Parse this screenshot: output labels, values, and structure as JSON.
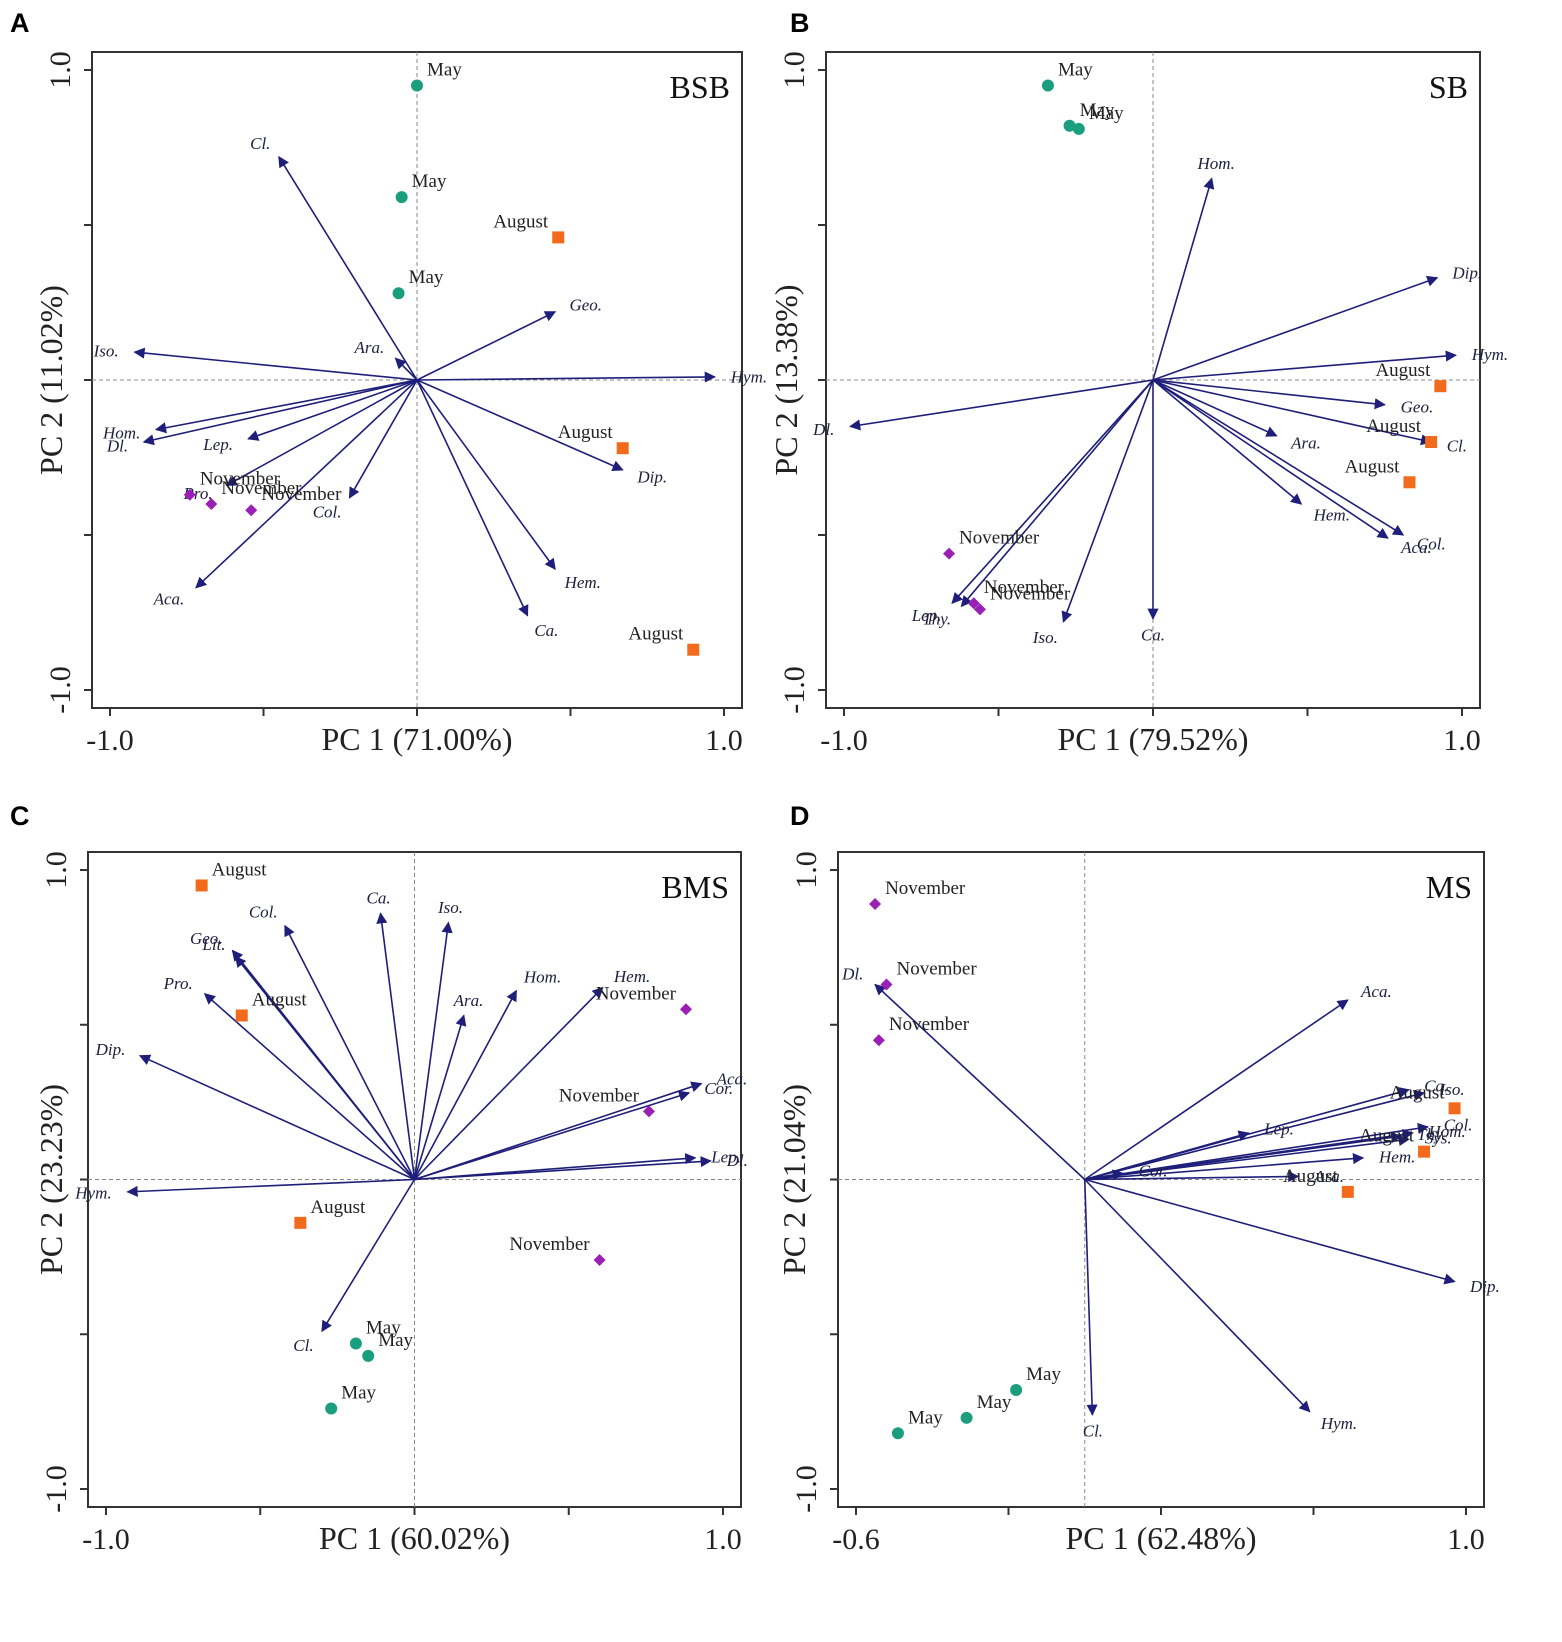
{
  "colors": {
    "arrow": "#1f1f7a",
    "may": "#1a9e7e",
    "august": "#f26a1b",
    "november": "#9a1fb5",
    "frame": "#333333",
    "zero_line": "#888888"
  },
  "chart_data": [
    {
      "type": "scatter",
      "panel": "A",
      "site": "BSB",
      "xlabel": "PC 1 (71.00%)",
      "ylabel": "PC 2 (11.02%)",
      "xlim": [
        -1.0,
        1.0
      ],
      "ylim": [
        -1.0,
        1.0
      ],
      "x_tick_labels": [
        "-1.0",
        "1.0"
      ],
      "y_tick_labels": [
        "1.0",
        "-1.0"
      ],
      "loadings": [
        {
          "name": "Cl.",
          "x": -0.45,
          "y": 0.72
        },
        {
          "name": "Geo.",
          "x": 0.45,
          "y": 0.22
        },
        {
          "name": "Hym.",
          "x": 0.97,
          "y": 0.01
        },
        {
          "name": "Ara.",
          "x": -0.07,
          "y": 0.07
        },
        {
          "name": "Iso.",
          "x": -0.92,
          "y": 0.09
        },
        {
          "name": "Hom.",
          "x": -0.85,
          "y": -0.16
        },
        {
          "name": "Dl.",
          "x": -0.89,
          "y": -0.2
        },
        {
          "name": "Lep.",
          "x": -0.55,
          "y": -0.19
        },
        {
          "name": "Pro.",
          "x": -0.62,
          "y": -0.34
        },
        {
          "name": "Col.",
          "x": -0.22,
          "y": -0.38
        },
        {
          "name": "Aca.",
          "x": -0.72,
          "y": -0.67
        },
        {
          "name": "Dip.",
          "x": 0.67,
          "y": -0.29
        },
        {
          "name": "Hem.",
          "x": 0.45,
          "y": -0.61
        },
        {
          "name": "Ca.",
          "x": 0.36,
          "y": -0.76
        }
      ],
      "scores": [
        {
          "label": "May",
          "group": "May",
          "x": 0.0,
          "y": 0.95
        },
        {
          "label": "May",
          "group": "May",
          "x": -0.05,
          "y": 0.59
        },
        {
          "label": "May",
          "group": "May",
          "x": -0.06,
          "y": 0.28
        },
        {
          "label": "August",
          "group": "August",
          "x": 0.46,
          "y": 0.46
        },
        {
          "label": "August",
          "group": "August",
          "x": 0.67,
          "y": -0.22
        },
        {
          "label": "August",
          "group": "August",
          "x": 0.9,
          "y": -0.87
        },
        {
          "label": "November",
          "group": "November",
          "x": -0.74,
          "y": -0.37
        },
        {
          "label": "November",
          "group": "November",
          "x": -0.67,
          "y": -0.4
        },
        {
          "label": "November",
          "group": "November",
          "x": -0.54,
          "y": -0.42
        }
      ]
    },
    {
      "type": "scatter",
      "panel": "B",
      "site": "SB",
      "xlabel": "PC 1 (79.52%)",
      "ylabel": "PC 2 (13.38%)",
      "xlim": [
        -1.0,
        1.0
      ],
      "ylim": [
        -1.0,
        1.0
      ],
      "x_tick_labels": [
        "-1.0",
        "1.0"
      ],
      "y_tick_labels": [
        "1.0",
        "-1.0"
      ],
      "loadings": [
        {
          "name": "Hom.",
          "x": 0.19,
          "y": 0.65
        },
        {
          "name": "Dip.",
          "x": 0.92,
          "y": 0.33
        },
        {
          "name": "Hym.",
          "x": 0.98,
          "y": 0.08
        },
        {
          "name": "Geo.",
          "x": 0.75,
          "y": -0.08
        },
        {
          "name": "Cl.",
          "x": 0.9,
          "y": -0.2
        },
        {
          "name": "Ara.",
          "x": 0.4,
          "y": -0.18
        },
        {
          "name": "Hem.",
          "x": 0.48,
          "y": -0.4
        },
        {
          "name": "Col.",
          "x": 0.81,
          "y": -0.5
        },
        {
          "name": "Aca.",
          "x": 0.76,
          "y": -0.51
        },
        {
          "name": "Dl.",
          "x": -0.98,
          "y": -0.15
        },
        {
          "name": "Lep.",
          "x": -0.65,
          "y": -0.72
        },
        {
          "name": "Thy.",
          "x": -0.62,
          "y": -0.73
        },
        {
          "name": "Iso.",
          "x": -0.29,
          "y": -0.78
        },
        {
          "name": "Ca.",
          "x": 0.0,
          "y": -0.77
        }
      ],
      "scores": [
        {
          "label": "May",
          "group": "May",
          "x": -0.34,
          "y": 0.95
        },
        {
          "label": "May",
          "group": "May",
          "x": -0.27,
          "y": 0.82
        },
        {
          "label": "May",
          "group": "May",
          "x": -0.24,
          "y": 0.81
        },
        {
          "label": "August",
          "group": "August",
          "x": 0.93,
          "y": -0.02
        },
        {
          "label": "August",
          "group": "August",
          "x": 0.9,
          "y": -0.2
        },
        {
          "label": "August",
          "group": "August",
          "x": 0.83,
          "y": -0.33
        },
        {
          "label": "November",
          "group": "November",
          "x": -0.66,
          "y": -0.56
        },
        {
          "label": "November",
          "group": "November",
          "x": -0.58,
          "y": -0.72
        },
        {
          "label": "November",
          "group": "November",
          "x": -0.56,
          "y": -0.74
        }
      ]
    },
    {
      "type": "scatter",
      "panel": "C",
      "site": "BMS",
      "xlabel": "PC 1 (60.02%)",
      "ylabel": "PC 2 (23.23%)",
      "xlim": [
        -1.0,
        1.0
      ],
      "ylim": [
        -1.0,
        1.0
      ],
      "x_tick_labels": [
        "-1.0",
        "1.0"
      ],
      "y_tick_labels": [
        "1.0",
        "-1.0"
      ],
      "loadings": [
        {
          "name": "Col.",
          "x": -0.42,
          "y": 0.82
        },
        {
          "name": "Ca.",
          "x": -0.11,
          "y": 0.86
        },
        {
          "name": "Iso.",
          "x": 0.11,
          "y": 0.83
        },
        {
          "name": "Geo.",
          "x": -0.59,
          "y": 0.74
        },
        {
          "name": "Lit.",
          "x": -0.58,
          "y": 0.72
        },
        {
          "name": "Pro.",
          "x": -0.68,
          "y": 0.6
        },
        {
          "name": "Dip.",
          "x": -0.89,
          "y": 0.4
        },
        {
          "name": "Ara.",
          "x": 0.16,
          "y": 0.53
        },
        {
          "name": "Hom.",
          "x": 0.33,
          "y": 0.61
        },
        {
          "name": "Hem.",
          "x": 0.61,
          "y": 0.62
        },
        {
          "name": "Aca.",
          "x": 0.93,
          "y": 0.31
        },
        {
          "name": "Cor.",
          "x": 0.89,
          "y": 0.28
        },
        {
          "name": "Lep.",
          "x": 0.91,
          "y": 0.07
        },
        {
          "name": "Dl.",
          "x": 0.96,
          "y": 0.06
        },
        {
          "name": "Hym.",
          "x": -0.93,
          "y": -0.04
        },
        {
          "name": "Cl.",
          "x": -0.3,
          "y": -0.49
        }
      ],
      "scores": [
        {
          "label": "August",
          "group": "August",
          "x": -0.69,
          "y": 0.95
        },
        {
          "label": "August",
          "group": "August",
          "x": -0.56,
          "y": 0.53
        },
        {
          "label": "August",
          "group": "August",
          "x": -0.37,
          "y": -0.14
        },
        {
          "label": "November",
          "group": "November",
          "x": 0.88,
          "y": 0.55
        },
        {
          "label": "November",
          "group": "November",
          "x": 0.76,
          "y": 0.22
        },
        {
          "label": "November",
          "group": "November",
          "x": 0.6,
          "y": -0.26
        },
        {
          "label": "May",
          "group": "May",
          "x": -0.19,
          "y": -0.53
        },
        {
          "label": "May",
          "group": "May",
          "x": -0.15,
          "y": -0.57
        },
        {
          "label": "May",
          "group": "May",
          "x": -0.27,
          "y": -0.74
        }
      ]
    },
    {
      "type": "scatter",
      "panel": "D",
      "site": "MS",
      "xlabel": "PC 1 (62.48%)",
      "ylabel": "PC 2 (21.04%)",
      "xlim": [
        -0.6,
        1.0
      ],
      "ylim": [
        -1.0,
        1.0
      ],
      "x_tick_labels": [
        "-0.6",
        "1.0"
      ],
      "y_tick_labels": [
        "1.0",
        "-1.0"
      ],
      "loadings": [
        {
          "name": "Dl.",
          "x": -0.55,
          "y": 0.63
        },
        {
          "name": "Aca.",
          "x": 0.69,
          "y": 0.58
        },
        {
          "name": "Ca.",
          "x": 0.85,
          "y": 0.29
        },
        {
          "name": "Iso.",
          "x": 0.89,
          "y": 0.28
        },
        {
          "name": "Col.",
          "x": 0.9,
          "y": 0.17
        },
        {
          "name": "Thy.",
          "x": 0.83,
          "y": 0.14
        },
        {
          "name": "Hom.",
          "x": 0.86,
          "y": 0.15
        },
        {
          "name": "Sys.",
          "x": 0.85,
          "y": 0.13
        },
        {
          "name": "Lep.",
          "x": 0.43,
          "y": 0.15
        },
        {
          "name": "Hem.",
          "x": 0.73,
          "y": 0.07
        },
        {
          "name": "Ara.",
          "x": 0.56,
          "y": 0.01
        },
        {
          "name": "Cor.",
          "x": 0.1,
          "y": 0.02
        },
        {
          "name": "Dip.",
          "x": 0.97,
          "y": -0.33
        },
        {
          "name": "Hym.",
          "x": 0.59,
          "y": -0.75
        },
        {
          "name": "Cl.",
          "x": 0.02,
          "y": -0.76
        }
      ],
      "scores": [
        {
          "label": "November",
          "group": "November",
          "x": -0.55,
          "y": 0.89
        },
        {
          "label": "November",
          "group": "November",
          "x": -0.52,
          "y": 0.63
        },
        {
          "label": "November",
          "group": "November",
          "x": -0.54,
          "y": 0.45
        },
        {
          "label": "August",
          "group": "August",
          "x": 0.97,
          "y": 0.23
        },
        {
          "label": "August",
          "group": "August",
          "x": 0.89,
          "y": 0.09
        },
        {
          "label": "August",
          "group": "August",
          "x": 0.69,
          "y": -0.04
        },
        {
          "label": "May",
          "group": "May",
          "x": -0.18,
          "y": -0.68
        },
        {
          "label": "May",
          "group": "May",
          "x": -0.31,
          "y": -0.77
        },
        {
          "label": "May",
          "group": "May",
          "x": -0.49,
          "y": -0.82
        }
      ]
    }
  ]
}
